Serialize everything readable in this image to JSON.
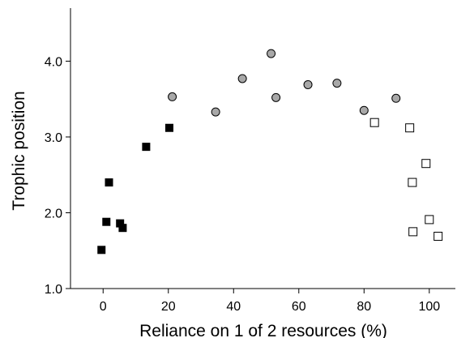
{
  "chart_data": {
    "type": "scatter",
    "title": "",
    "xlabel": "Reliance on 1 of 2 resources (%)",
    "ylabel": "Trophic position",
    "xlim": [
      -10,
      108
    ],
    "ylim": [
      1.0,
      4.7
    ],
    "xticks": [
      0,
      20,
      40,
      60,
      80,
      100
    ],
    "yticks": [
      1.0,
      2.0,
      3.0,
      4.0
    ],
    "ytick_labels": [
      "1.0",
      "2.0",
      "3.0",
      "4.0"
    ],
    "grid": false,
    "legend": "none",
    "series": [
      {
        "marker": "filled-square",
        "color": "#000000",
        "points": [
          {
            "x": -0.5,
            "y": 1.51
          },
          {
            "x": 1.0,
            "y": 1.88
          },
          {
            "x": 1.8,
            "y": 2.4
          },
          {
            "x": 5.2,
            "y": 1.86
          },
          {
            "x": 6.0,
            "y": 1.8
          },
          {
            "x": 13.2,
            "y": 2.87
          },
          {
            "x": 20.3,
            "y": 3.12
          }
        ]
      },
      {
        "marker": "gray-circle",
        "color": "#a8a8a8",
        "points": [
          {
            "x": 21.2,
            "y": 3.53
          },
          {
            "x": 34.5,
            "y": 3.33
          },
          {
            "x": 42.7,
            "y": 3.77
          },
          {
            "x": 51.5,
            "y": 4.1
          },
          {
            "x": 53.0,
            "y": 3.52
          },
          {
            "x": 62.8,
            "y": 3.69
          },
          {
            "x": 71.7,
            "y": 3.71
          },
          {
            "x": 80.0,
            "y": 3.35
          },
          {
            "x": 89.8,
            "y": 3.51
          }
        ]
      },
      {
        "marker": "open-square",
        "color": "#000000",
        "points": [
          {
            "x": 83.2,
            "y": 3.19
          },
          {
            "x": 94.0,
            "y": 3.12
          },
          {
            "x": 94.8,
            "y": 2.4
          },
          {
            "x": 95.0,
            "y": 1.75
          },
          {
            "x": 99.0,
            "y": 2.65
          },
          {
            "x": 100.0,
            "y": 1.91
          },
          {
            "x": 102.7,
            "y": 1.69
          }
        ]
      }
    ]
  }
}
